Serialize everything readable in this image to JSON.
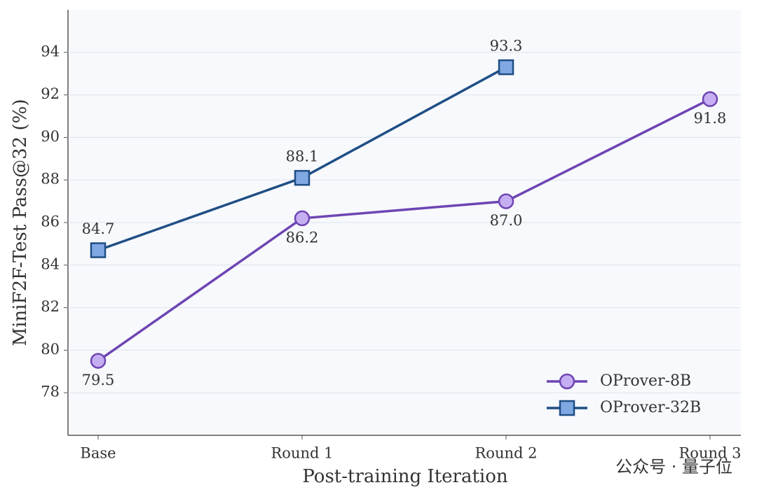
{
  "chart_data": {
    "type": "line",
    "xlabel": "Post-training Iteration",
    "ylabel": "MiniF2F-Test Pass@32 (%)",
    "categories": [
      "Base",
      "Round 1",
      "Round 2",
      "Round 3"
    ],
    "series": [
      {
        "name": "OProver-8B",
        "color": "#6e45b3",
        "marker_color": "#c5aef2",
        "marker": "circle",
        "values": [
          79.5,
          86.2,
          87.0,
          91.8
        ],
        "value_labels": [
          "79.5",
          "86.2",
          "87.0",
          "91.8"
        ]
      },
      {
        "name": "OProver-32B",
        "color": "#1f4e85",
        "marker_color": "#80a8e2",
        "marker": "square",
        "values": [
          84.7,
          88.1,
          93.3,
          null
        ],
        "value_labels": [
          "84.7",
          "88.1",
          "93.3",
          null
        ]
      }
    ],
    "ylim": [
      76,
      96
    ],
    "yticks": [
      78,
      80,
      82,
      84,
      86,
      88,
      90,
      92,
      94
    ],
    "grid": true,
    "legend": "lower right",
    "watermark": "公众号 · 量子位"
  }
}
